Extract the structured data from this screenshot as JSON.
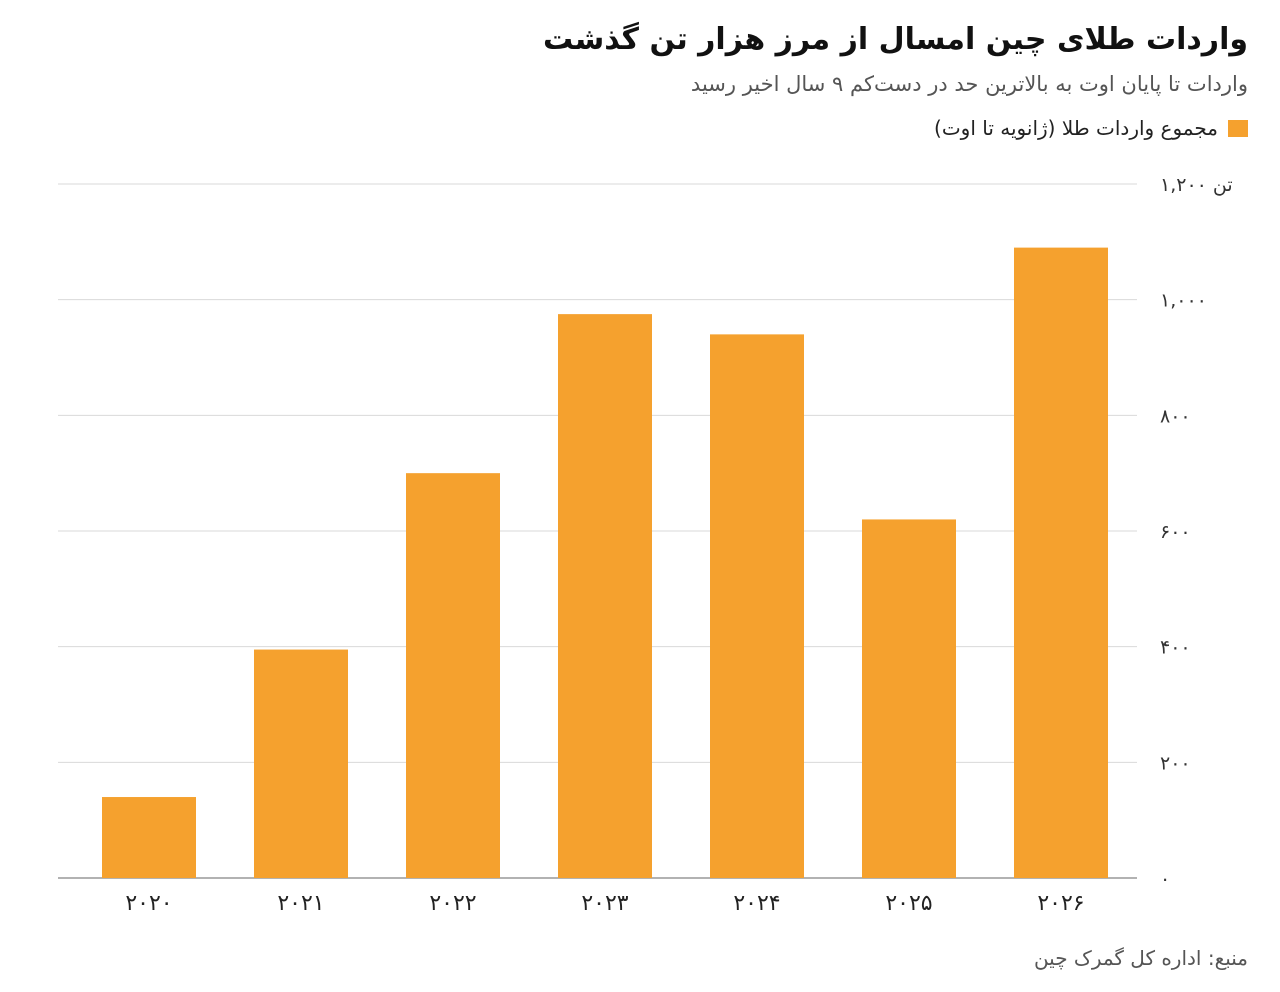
{
  "header": {
    "title": "واردات طلای چین امسال از مرز هزار تن گذشت",
    "subtitle": "واردات تا پایان اوت به بالاترین حد در دست‌کم ۹ سال اخیر رسید"
  },
  "footer": {
    "source": "منبع: اداره کل گمرک چین"
  },
  "colors": {
    "bar": "#F5A12E",
    "grid": "#d9d9d9",
    "axis": "#999999"
  },
  "chart_data": {
    "type": "bar",
    "title": "واردات طلای چین امسال از مرز هزار تن گذشت",
    "subtitle": "واردات تا پایان اوت به بالاترین حد در دست‌کم ۹ سال اخیر رسید",
    "categories": [
      "۲۰۲۰",
      "۲۰۲۱",
      "۲۰۲۲",
      "۲۰۲۳",
      "۲۰۲۴",
      "۲۰۲۵",
      "۲۰۲۶"
    ],
    "series": [
      {
        "name": "مجموع واردات طلا (ژانویه تا اوت)",
        "values": [
          140,
          395,
          700,
          975,
          940,
          620,
          1090
        ]
      }
    ],
    "ylim": [
      0,
      1200
    ],
    "yticks": [
      0,
      200,
      400,
      600,
      800,
      1000,
      1200
    ],
    "ytick_labels": [
      "۰",
      "۲۰۰",
      "۴۰۰",
      "۶۰۰",
      "۸۰۰",
      "۱,۰۰۰",
      "۱,۲۰۰ تن"
    ],
    "grid": true,
    "legend_position": "top-right",
    "y_axis_side": "right"
  }
}
